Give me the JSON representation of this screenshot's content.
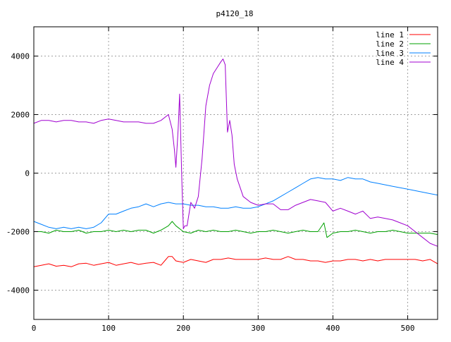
{
  "chart_data": {
    "type": "line",
    "title": "p4120_18",
    "xlabel": "",
    "ylabel": "",
    "xlim": [
      0,
      540
    ],
    "ylim": [
      -5000,
      5000
    ],
    "xticks": [
      0,
      100,
      200,
      300,
      400,
      500
    ],
    "yticks": [
      -4000,
      -2000,
      0,
      2000,
      4000
    ],
    "xtick_labels": [
      "0",
      "100",
      "200",
      "300",
      "400",
      "500"
    ],
    "ytick_labels": [
      "-4000",
      "-2000",
      "0",
      "2000",
      "4000"
    ],
    "grid": true,
    "legend_position": "top-right",
    "series": [
      {
        "name": "line 1",
        "color": "#ff0000",
        "x": [
          0,
          10,
          20,
          30,
          40,
          50,
          60,
          70,
          80,
          90,
          100,
          110,
          120,
          130,
          140,
          150,
          160,
          170,
          175,
          180,
          185,
          190,
          200,
          210,
          220,
          230,
          240,
          250,
          260,
          270,
          280,
          290,
          300,
          310,
          320,
          330,
          340,
          350,
          360,
          370,
          380,
          390,
          400,
          410,
          420,
          430,
          440,
          450,
          460,
          470,
          480,
          490,
          500,
          510,
          520,
          530,
          540
        ],
        "y": [
          -3200,
          -3150,
          -3100,
          -3180,
          -3150,
          -3200,
          -3100,
          -3080,
          -3150,
          -3100,
          -3050,
          -3150,
          -3100,
          -3050,
          -3120,
          -3080,
          -3050,
          -3150,
          -3000,
          -2850,
          -2850,
          -3000,
          -3050,
          -2950,
          -3000,
          -3050,
          -2950,
          -2950,
          -2900,
          -2950,
          -2950,
          -2950,
          -2950,
          -2900,
          -2950,
          -2950,
          -2850,
          -2950,
          -2950,
          -3000,
          -3000,
          -3050,
          -3000,
          -3000,
          -2950,
          -2950,
          -3000,
          -2950,
          -3000,
          -2950,
          -2950,
          -2950,
          -2950,
          -2950,
          -3000,
          -2950,
          -3100
        ]
      },
      {
        "name": "line 2",
        "color": "#00a000",
        "x": [
          0,
          10,
          20,
          30,
          40,
          50,
          60,
          70,
          80,
          90,
          100,
          110,
          120,
          130,
          140,
          150,
          160,
          170,
          180,
          185,
          190,
          200,
          210,
          220,
          230,
          240,
          250,
          260,
          270,
          280,
          290,
          300,
          310,
          320,
          330,
          340,
          350,
          360,
          370,
          380,
          388,
          392,
          400,
          410,
          420,
          430,
          440,
          450,
          460,
          470,
          480,
          490,
          500,
          510,
          520,
          530,
          540
        ],
        "y": [
          -2000,
          -2000,
          -2050,
          -1950,
          -2000,
          -2000,
          -1950,
          -2050,
          -2000,
          -2000,
          -1950,
          -2000,
          -1950,
          -2000,
          -1950,
          -1950,
          -2050,
          -1950,
          -1800,
          -1650,
          -1800,
          -2000,
          -2050,
          -1950,
          -2000,
          -1950,
          -2000,
          -2000,
          -1950,
          -2000,
          -2050,
          -2000,
          -2000,
          -1950,
          -2000,
          -2050,
          -2000,
          -1950,
          -2000,
          -2000,
          -1700,
          -2200,
          -2050,
          -2000,
          -2000,
          -1950,
          -2000,
          -2050,
          -2000,
          -2000,
          -1950,
          -2000,
          -2050,
          -2050,
          -2050,
          -2050,
          -2100
        ]
      },
      {
        "name": "line 3",
        "color": "#0080ff",
        "x": [
          0,
          10,
          20,
          30,
          40,
          50,
          60,
          70,
          80,
          90,
          100,
          110,
          120,
          130,
          140,
          150,
          160,
          170,
          180,
          190,
          200,
          210,
          220,
          230,
          240,
          250,
          260,
          270,
          280,
          290,
          300,
          310,
          320,
          330,
          340,
          350,
          360,
          370,
          380,
          390,
          400,
          410,
          420,
          430,
          440,
          450,
          460,
          470,
          480,
          490,
          500,
          510,
          520,
          530,
          540
        ],
        "y": [
          -1650,
          -1750,
          -1850,
          -1900,
          -1850,
          -1900,
          -1850,
          -1900,
          -1850,
          -1700,
          -1400,
          -1400,
          -1300,
          -1200,
          -1150,
          -1050,
          -1150,
          -1050,
          -1000,
          -1050,
          -1050,
          -1100,
          -1100,
          -1150,
          -1150,
          -1200,
          -1200,
          -1150,
          -1200,
          -1200,
          -1150,
          -1050,
          -950,
          -800,
          -650,
          -500,
          -350,
          -200,
          -150,
          -200,
          -200,
          -250,
          -150,
          -200,
          -200,
          -300,
          -350,
          -400,
          -450,
          -500,
          -550,
          -600,
          -650,
          -700,
          -750
        ]
      },
      {
        "name": "line 4",
        "color": "#a000d0",
        "x": [
          0,
          10,
          20,
          30,
          40,
          50,
          60,
          70,
          80,
          90,
          100,
          110,
          120,
          130,
          140,
          150,
          160,
          170,
          180,
          185,
          188,
          190,
          193,
          195,
          198,
          200,
          202,
          205,
          210,
          215,
          220,
          225,
          230,
          235,
          240,
          245,
          250,
          253,
          256,
          259,
          262,
          265,
          268,
          272,
          276,
          280,
          290,
          300,
          310,
          320,
          330,
          340,
          350,
          360,
          370,
          380,
          390,
          400,
          410,
          420,
          430,
          440,
          450,
          460,
          470,
          480,
          490,
          500,
          510,
          520,
          530,
          540
        ],
        "y": [
          1700,
          1800,
          1800,
          1750,
          1800,
          1800,
          1750,
          1750,
          1700,
          1800,
          1850,
          1800,
          1750,
          1750,
          1750,
          1700,
          1700,
          1800,
          2000,
          1500,
          800,
          200,
          1500,
          2700,
          -300,
          -1900,
          -1800,
          -1800,
          -1000,
          -1200,
          -800,
          500,
          2300,
          3000,
          3400,
          3600,
          3800,
          3900,
          3700,
          1400,
          1800,
          1300,
          300,
          -200,
          -500,
          -800,
          -1000,
          -1100,
          -1050,
          -1050,
          -1250,
          -1250,
          -1100,
          -1000,
          -900,
          -950,
          -1000,
          -1300,
          -1200,
          -1300,
          -1400,
          -1300,
          -1550,
          -1500,
          -1550,
          -1600,
          -1700,
          -1800,
          -2000,
          -2200,
          -2400,
          -2500
        ]
      }
    ]
  }
}
